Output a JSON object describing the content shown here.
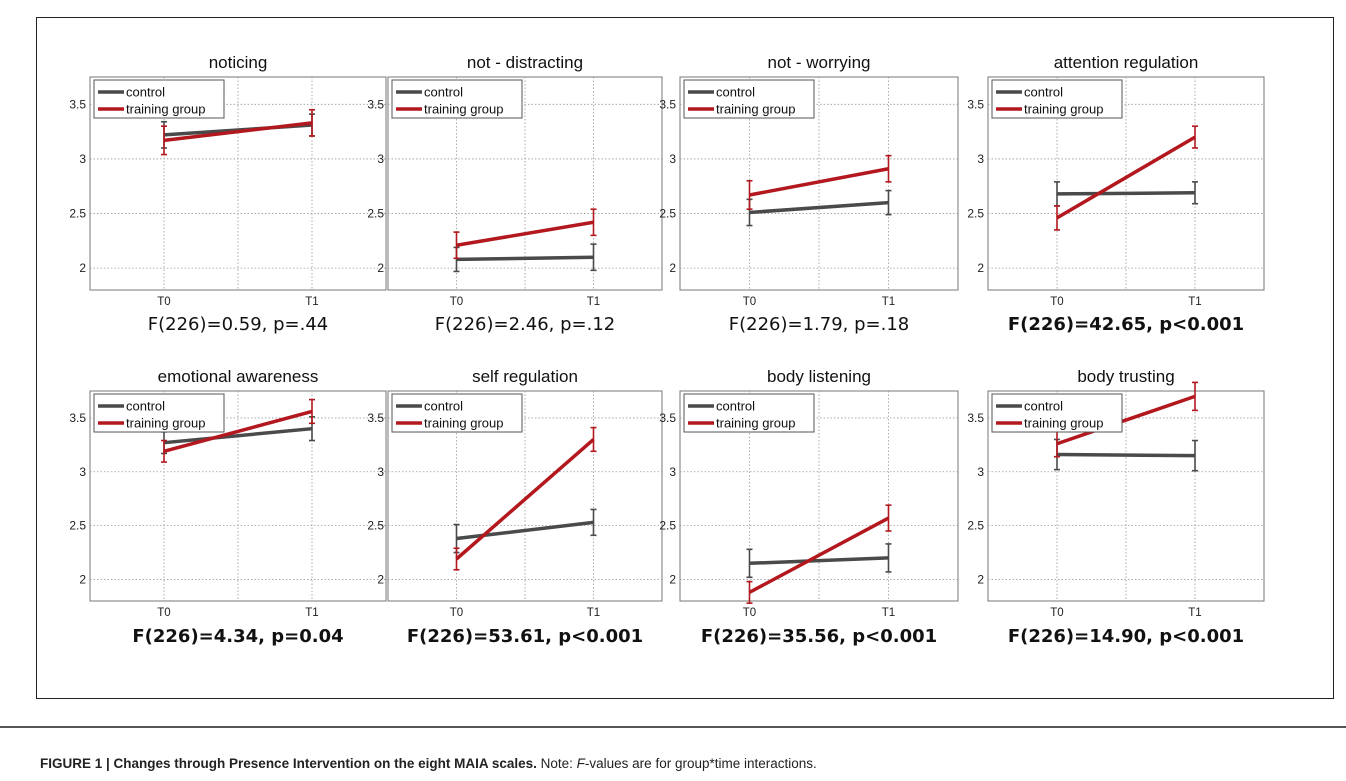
{
  "chart_data": [
    {
      "type": "line",
      "title": "noticing",
      "categories": [
        "T0",
        "T1"
      ],
      "ylim": [
        1.8,
        3.75
      ],
      "yticks": [
        "2",
        "2.5",
        "3",
        "3.5"
      ],
      "legend": [
        "control",
        "training group"
      ],
      "series": [
        {
          "name": "control",
          "values": [
            3.22,
            3.31
          ],
          "err": [
            0.12,
            0.1
          ]
        },
        {
          "name": "training group",
          "values": [
            3.17,
            3.33
          ],
          "err": [
            0.13,
            0.12
          ]
        }
      ],
      "stat": "F(226)=0.59, p=.44",
      "stat_bold": false
    },
    {
      "type": "line",
      "title": "not - distracting",
      "categories": [
        "T0",
        "T1"
      ],
      "ylim": [
        1.8,
        3.75
      ],
      "yticks": [
        "2",
        "2.5",
        "3",
        "3.5"
      ],
      "legend": [
        "control",
        "training group"
      ],
      "series": [
        {
          "name": "control",
          "values": [
            2.08,
            2.1
          ],
          "err": [
            0.11,
            0.12
          ]
        },
        {
          "name": "training group",
          "values": [
            2.21,
            2.42
          ],
          "err": [
            0.12,
            0.12
          ]
        }
      ],
      "stat": "F(226)=2.46, p=.12",
      "stat_bold": false
    },
    {
      "type": "line",
      "title": "not - worrying",
      "categories": [
        "T0",
        "T1"
      ],
      "ylim": [
        1.8,
        3.75
      ],
      "yticks": [
        "2",
        "2.5",
        "3",
        "3.5"
      ],
      "legend": [
        "control",
        "training group"
      ],
      "series": [
        {
          "name": "control",
          "values": [
            2.51,
            2.6
          ],
          "err": [
            0.12,
            0.11
          ]
        },
        {
          "name": "training group",
          "values": [
            2.67,
            2.91
          ],
          "err": [
            0.13,
            0.12
          ]
        }
      ],
      "stat": "F(226)=1.79, p=.18",
      "stat_bold": false
    },
    {
      "type": "line",
      "title": "attention regulation",
      "categories": [
        "T0",
        "T1"
      ],
      "ylim": [
        1.8,
        3.75
      ],
      "yticks": [
        "2",
        "2.5",
        "3",
        "3.5"
      ],
      "legend": [
        "control",
        "training group"
      ],
      "series": [
        {
          "name": "control",
          "values": [
            2.68,
            2.69
          ],
          "err": [
            0.11,
            0.1
          ]
        },
        {
          "name": "training group",
          "values": [
            2.46,
            3.2
          ],
          "err": [
            0.11,
            0.1
          ]
        }
      ],
      "stat": "F(226)=42.65, p<0.001",
      "stat_bold": true
    },
    {
      "type": "line",
      "title": "emotional awareness",
      "categories": [
        "T0",
        "T1"
      ],
      "ylim": [
        1.8,
        3.75
      ],
      "yticks": [
        "2",
        "2.5",
        "3",
        "3.5"
      ],
      "legend": [
        "control",
        "training group"
      ],
      "series": [
        {
          "name": "control",
          "values": [
            3.27,
            3.4
          ],
          "err": [
            0.1,
            0.11
          ]
        },
        {
          "name": "training group",
          "values": [
            3.19,
            3.56
          ],
          "err": [
            0.1,
            0.11
          ]
        }
      ],
      "stat": "F(226)=4.34, p=0.04",
      "stat_bold": true
    },
    {
      "type": "line",
      "title": "self regulation",
      "categories": [
        "T0",
        "T1"
      ],
      "ylim": [
        1.8,
        3.75
      ],
      "yticks": [
        "2",
        "2.5",
        "3",
        "3.5"
      ],
      "legend": [
        "control",
        "training group"
      ],
      "series": [
        {
          "name": "control",
          "values": [
            2.38,
            2.53
          ],
          "err": [
            0.13,
            0.12
          ]
        },
        {
          "name": "training group",
          "values": [
            2.19,
            3.3
          ],
          "err": [
            0.1,
            0.11
          ]
        }
      ],
      "stat": "F(226)=53.61, p<0.001",
      "stat_bold": true
    },
    {
      "type": "line",
      "title": "body listening",
      "categories": [
        "T0",
        "T1"
      ],
      "ylim": [
        1.8,
        3.75
      ],
      "yticks": [
        "2",
        "2.5",
        "3",
        "3.5"
      ],
      "legend": [
        "control",
        "training group"
      ],
      "series": [
        {
          "name": "control",
          "values": [
            2.15,
            2.2
          ],
          "err": [
            0.13,
            0.13
          ]
        },
        {
          "name": "training group",
          "values": [
            1.88,
            2.57
          ],
          "err": [
            0.1,
            0.12
          ]
        }
      ],
      "stat": "F(226)=35.56, p<0.001",
      "stat_bold": true
    },
    {
      "type": "line",
      "title": "body trusting",
      "categories": [
        "T0",
        "T1"
      ],
      "ylim": [
        1.8,
        3.75
      ],
      "yticks": [
        "2",
        "2.5",
        "3",
        "3.5"
      ],
      "legend": [
        "control",
        "training group"
      ],
      "series": [
        {
          "name": "control",
          "values": [
            3.16,
            3.15
          ],
          "err": [
            0.14,
            0.14
          ]
        },
        {
          "name": "training group",
          "values": [
            3.26,
            3.7
          ],
          "err": [
            0.12,
            0.13
          ]
        }
      ],
      "stat": "F(226)=14.90, p<0.001",
      "stat_bold": true
    }
  ],
  "colors": {
    "control": "#4a4a4a",
    "training": "#b3181e",
    "grid": "#9a9a9a"
  },
  "caption": {
    "label": "FIGURE 1 | Changes through Presence Intervention on the eight MAIA scales.",
    "note_prefix": " Note: ",
    "note_italic": "F",
    "note_rest": "-values are for group*time interactions."
  }
}
